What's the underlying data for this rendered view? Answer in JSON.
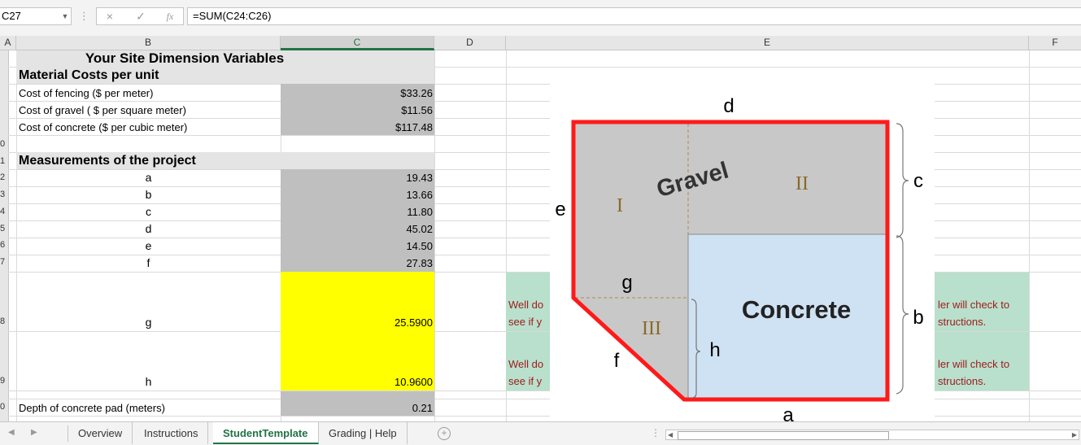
{
  "formula_bar": {
    "name_box": "C27",
    "more_icon": "⋮",
    "cancel_icon": "×",
    "enter_icon": "✓",
    "fx_icon": "fx",
    "formula": "=SUM(C24:C26)"
  },
  "columns": [
    "A",
    "B",
    "C",
    "D",
    "E",
    "F"
  ],
  "row_numbers": [
    "0",
    "1",
    "2",
    "3",
    "4",
    "5",
    "6",
    "7",
    "8",
    "9",
    "0"
  ],
  "sheet": {
    "title": "Your Site Dimension Variables",
    "material_header": "Material Costs per unit",
    "materials": [
      {
        "label": "Cost of fencing ($ per meter)",
        "value": "$33.26"
      },
      {
        "label": "Cost of gravel ( $ per square meter)",
        "value": "$11.56"
      },
      {
        "label": "Cost of concrete ($ per cubic meter)",
        "value": "$117.48"
      }
    ],
    "measure_header": "Measurements of the project",
    "measurements": [
      {
        "label": "a",
        "value": "19.43"
      },
      {
        "label": "b",
        "value": "13.66"
      },
      {
        "label": "c",
        "value": "11.80"
      },
      {
        "label": "d",
        "value": "45.02"
      },
      {
        "label": "e",
        "value": "14.50"
      },
      {
        "label": "f",
        "value": "27.83"
      }
    ],
    "g": {
      "label": "g",
      "value": "25.5900"
    },
    "h": {
      "label": "h",
      "value": "10.9600"
    },
    "depth": {
      "label": "Depth of concrete pad (meters)",
      "value": "0.21"
    },
    "feedback_left_1": "Well do",
    "feedback_left_2": "see if y",
    "feedback_right_1": "ler will check to",
    "feedback_right_2": "structions."
  },
  "diagram": {
    "labels": {
      "a": "a",
      "b": "b",
      "c": "c",
      "d": "d",
      "e": "e",
      "f": "f",
      "g": "g",
      "h": "h"
    },
    "regions": {
      "I": "I",
      "II": "II",
      "III": "III"
    },
    "gravel": "Gravel",
    "concrete": "Concrete",
    "colors": {
      "outline": "#ff1a1a",
      "gravel_fill": "#c8c8c8",
      "concrete_fill": "#cfe2f3"
    }
  },
  "tabs": {
    "prev_icon": "◀",
    "next_icon": "▶",
    "items": [
      "Overview",
      "Instructions",
      "StudentTemplate",
      "Grading | Help"
    ],
    "active": "StudentTemplate",
    "add_icon": "+"
  },
  "scroll": {
    "left_icon": "◀",
    "right_icon": "▶",
    "dots_icon": "⋮"
  }
}
